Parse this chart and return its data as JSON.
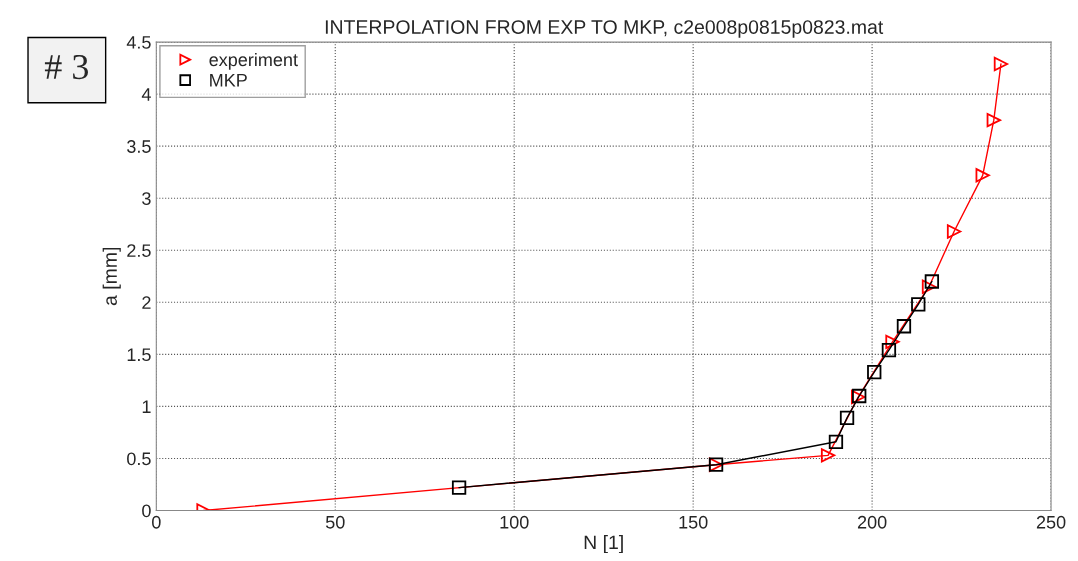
{
  "chart_data": {
    "type": "line",
    "title": "INTERPOLATION FROM EXP TO MKP, c2e008p0815p0823.mat",
    "xlabel": "N [1]",
    "ylabel": "a [mm]",
    "annotations": [
      "# 3"
    ],
    "series": [
      {
        "name": "experiment",
        "color": "#ff0000",
        "marker": "triangle",
        "x": [
          13.2,
          156.4,
          187.7,
          196.1,
          205.7,
          215.9,
          222.9,
          230.9,
          234.0,
          236.0
        ],
        "values": [
          0,
          0.44,
          0.53,
          1.09,
          1.62,
          2.15,
          2.68,
          3.22,
          3.75,
          4.29
        ]
      },
      {
        "name": "MKP",
        "color": "#000000",
        "marker": "square",
        "x": [
          84.6,
          156.4,
          189.9,
          193.0,
          196.4,
          200.6,
          204.7,
          208.9,
          212.9,
          216.7
        ],
        "values": [
          0.22,
          0.44,
          0.66,
          0.89,
          1.1,
          1.33,
          1.54,
          1.77,
          1.98,
          2.2
        ]
      }
    ],
    "xlim": [
      0,
      250
    ],
    "xticks": [
      0,
      50,
      100,
      150,
      200,
      250
    ],
    "ylim": [
      0,
      4.5
    ],
    "yticks": [
      0,
      0.5,
      1,
      1.5,
      2,
      2.5,
      3,
      3.5,
      4,
      4.5
    ],
    "grid": true,
    "legend": "top left",
    "line_style": "solid"
  }
}
